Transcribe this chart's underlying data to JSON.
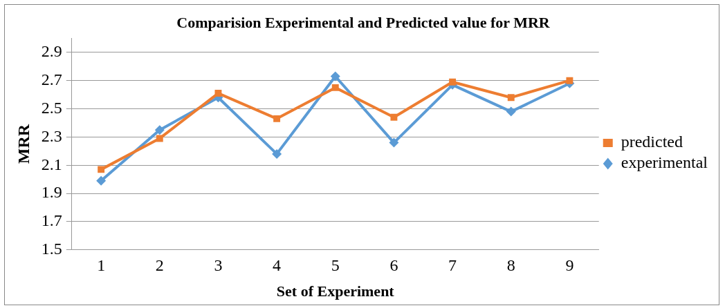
{
  "chart_data": {
    "type": "line",
    "title": "Comparision Experimental and Predicted value for MRR",
    "xlabel": "Set of Experiment",
    "ylabel": "MRR",
    "categories": [
      "1",
      "2",
      "3",
      "4",
      "5",
      "6",
      "7",
      "8",
      "9"
    ],
    "series": [
      {
        "name": "experimental",
        "color": "#5b9bd5",
        "marker": "diamond",
        "values": [
          1.99,
          2.35,
          2.58,
          2.18,
          2.73,
          2.26,
          2.67,
          2.48,
          2.68
        ]
      },
      {
        "name": "predicted",
        "color": "#ed7d31",
        "marker": "square",
        "values": [
          2.07,
          2.29,
          2.61,
          2.43,
          2.65,
          2.44,
          2.69,
          2.58,
          2.7
        ]
      }
    ],
    "ylim": [
      1.5,
      3.0
    ],
    "yticks": [
      1.5,
      1.7,
      1.9,
      2.1,
      2.3,
      2.5,
      2.7,
      2.9
    ],
    "grid": "y",
    "legend": "right",
    "line_style": "solid"
  }
}
